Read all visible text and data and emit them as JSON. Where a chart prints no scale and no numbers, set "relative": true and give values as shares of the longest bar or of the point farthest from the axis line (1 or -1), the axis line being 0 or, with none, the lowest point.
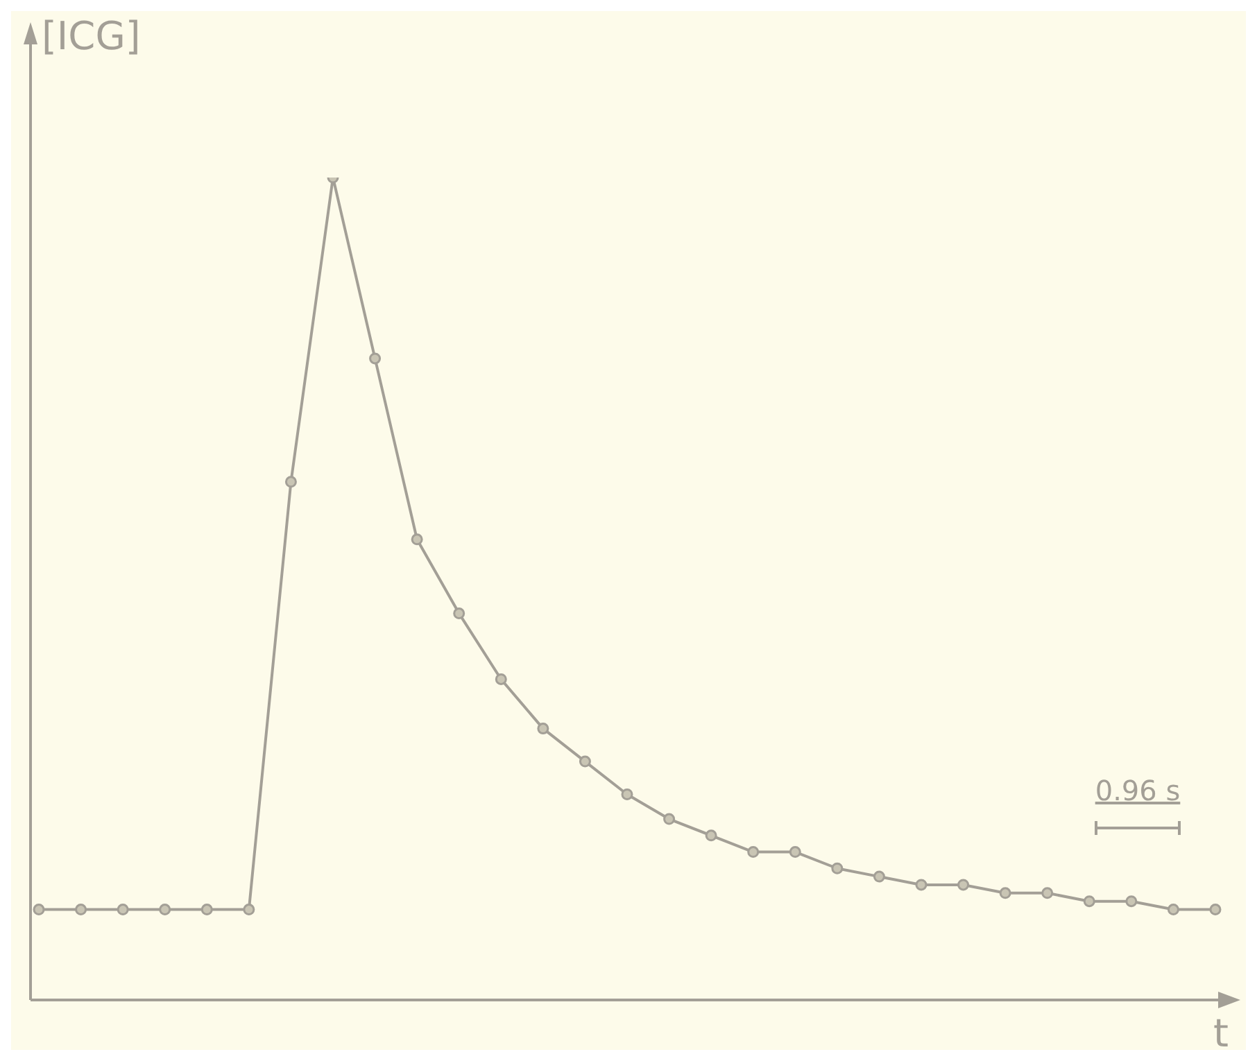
{
  "chart_data": {
    "type": "line",
    "xlabel": "t",
    "ylabel": "[ICG]",
    "annotations": [
      "0.96 s"
    ],
    "relative": true,
    "marker": "circle",
    "categories": [
      null,
      null,
      null,
      null,
      null,
      null,
      null,
      null,
      null,
      null,
      null,
      null,
      null,
      null,
      null,
      null,
      null,
      null,
      null,
      null,
      null,
      null,
      null,
      null,
      null,
      null,
      null,
      null,
      null
    ],
    "series": [
      {
        "color": "#a39f96",
        "values": [
          0.11,
          0.11,
          0.11,
          0.11,
          0.11,
          0.11,
          0.63,
          1.0,
          0.78,
          0.56,
          0.47,
          0.39,
          0.33,
          0.29,
          0.25,
          0.22,
          0.2,
          0.18,
          0.18,
          0.16,
          0.15,
          0.14,
          0.14,
          0.13,
          0.13,
          0.12,
          0.12,
          0.11,
          0.11
        ]
      }
    ]
  }
}
